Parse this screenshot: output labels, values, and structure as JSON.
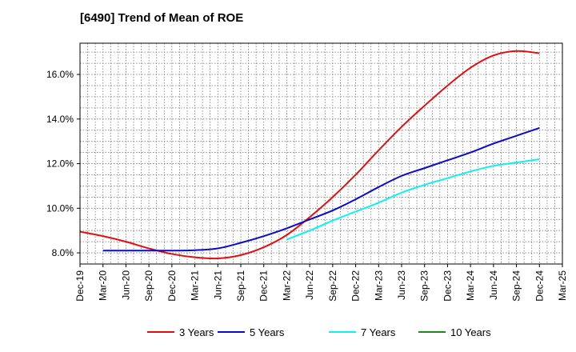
{
  "chart_data": {
    "type": "line",
    "title": "[6490]  Trend of Mean of ROE",
    "xlabel": "",
    "ylabel": "",
    "x_ticks": [
      "Dec-19",
      "Mar-20",
      "Jun-20",
      "Sep-20",
      "Dec-20",
      "Mar-21",
      "Jun-21",
      "Sep-21",
      "Dec-21",
      "Mar-22",
      "Jun-22",
      "Sep-22",
      "Dec-22",
      "Mar-23",
      "Jun-23",
      "Sep-23",
      "Dec-23",
      "Mar-24",
      "Jun-24",
      "Sep-24",
      "Dec-24",
      "Mar-25"
    ],
    "y_ticks": [
      "8.0%",
      "10.0%",
      "12.0%",
      "14.0%",
      "16.0%"
    ],
    "y_tick_values": [
      8,
      10,
      12,
      14,
      16
    ],
    "ylim": [
      7.5,
      17.4
    ],
    "grid": true,
    "legend_position": "bottom",
    "series": [
      {
        "name": "3 Years",
        "color": "#e01010",
        "start_index": 0,
        "values": [
          8.95,
          8.75,
          8.5,
          8.2,
          7.95,
          7.8,
          7.75,
          7.9,
          8.25,
          8.8,
          9.6,
          10.5,
          11.5,
          12.6,
          13.65,
          14.6,
          15.5,
          16.3,
          16.85,
          17.05,
          16.95
        ]
      },
      {
        "name": "5 Years",
        "color": "#0a0acc",
        "start_index": 1,
        "values": [
          8.1,
          8.1,
          8.1,
          8.1,
          8.12,
          8.2,
          8.45,
          8.75,
          9.1,
          9.5,
          9.9,
          10.4,
          10.95,
          11.45,
          11.8,
          12.15,
          12.5,
          12.9,
          13.25,
          13.6
        ]
      },
      {
        "name": "7 Years",
        "color": "#10f0f0",
        "start_index": 9,
        "values": [
          8.6,
          9.0,
          9.45,
          9.85,
          10.25,
          10.7,
          11.05,
          11.35,
          11.65,
          11.9,
          12.05,
          12.2
        ]
      },
      {
        "name": "10 Years",
        "color": "#1a8a1a",
        "start_index": 0,
        "values": []
      }
    ]
  }
}
